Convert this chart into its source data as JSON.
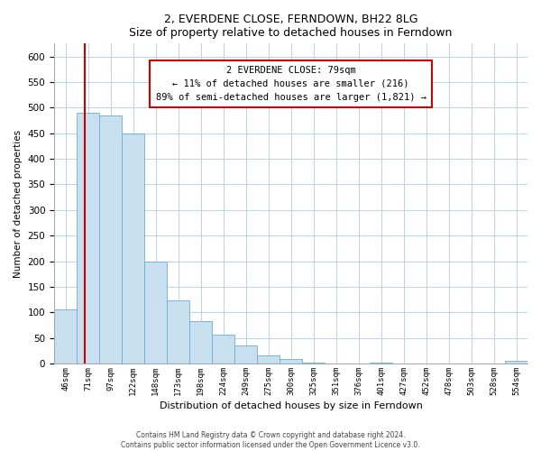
{
  "title": "2, EVERDENE CLOSE, FERNDOWN, BH22 8LG",
  "subtitle": "Size of property relative to detached houses in Ferndown",
  "xlabel": "Distribution of detached houses by size in Ferndown",
  "ylabel": "Number of detached properties",
  "bin_labels": [
    "46sqm",
    "71sqm",
    "97sqm",
    "122sqm",
    "148sqm",
    "173sqm",
    "198sqm",
    "224sqm",
    "249sqm",
    "275sqm",
    "300sqm",
    "325sqm",
    "351sqm",
    "376sqm",
    "401sqm",
    "427sqm",
    "452sqm",
    "478sqm",
    "503sqm",
    "528sqm",
    "554sqm"
  ],
  "bar_heights": [
    105,
    490,
    485,
    450,
    200,
    123,
    82,
    57,
    35,
    16,
    8,
    2,
    0,
    0,
    2,
    0,
    0,
    0,
    0,
    0,
    5
  ],
  "bar_color": "#c8dff0",
  "bar_edge_color": "#6aadd5",
  "vline_x": 1.35,
  "vline_color": "#cc0000",
  "annotation_title": "2 EVERDENE CLOSE: 79sqm",
  "annotation_line1": "← 11% of detached houses are smaller (216)",
  "annotation_line2": "89% of semi-detached houses are larger (1,821) →",
  "annotation_box_edge": "#cc0000",
  "ylim": [
    0,
    625
  ],
  "yticks": [
    0,
    50,
    100,
    150,
    200,
    250,
    300,
    350,
    400,
    450,
    500,
    550,
    600
  ],
  "footnote1": "Contains HM Land Registry data © Crown copyright and database right 2024.",
  "footnote2": "Contains public sector information licensed under the Open Government Licence v3.0."
}
